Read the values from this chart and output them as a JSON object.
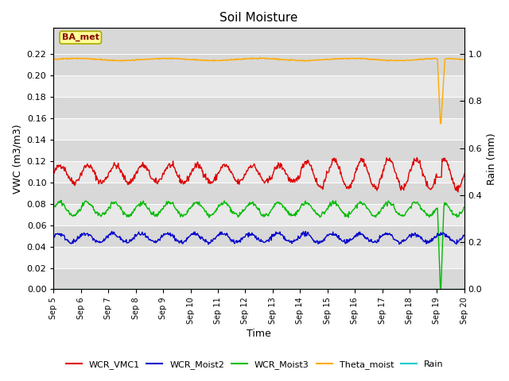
{
  "title": "Soil Moisture",
  "xlabel": "Time",
  "ylabel_left": "VWC (m3/m3)",
  "ylabel_right": "Rain (mm)",
  "annotation": "BA_met",
  "ylim_left": [
    0.0,
    0.2444
  ],
  "ylim_right": [
    0.0,
    1.111
  ],
  "yticks_left": [
    0.0,
    0.02,
    0.04,
    0.06,
    0.08,
    0.1,
    0.12,
    0.14,
    0.16,
    0.18,
    0.2,
    0.22
  ],
  "yticks_right": [
    0.0,
    0.2,
    0.4,
    0.6,
    0.8,
    1.0
  ],
  "colors": {
    "WCR_VMC1": "#dd0000",
    "WCR_Moist2": "#0000cc",
    "WCR_Moist3": "#00bb00",
    "Theta_moist": "#ffaa00",
    "Rain": "#00cccc",
    "bg_dark": "#d8d8d8",
    "bg_light": "#e8e8e8"
  },
  "legend_labels": [
    "WCR_VMC1",
    "WCR_Moist2",
    "WCR_Moist3",
    "Theta_moist",
    "Rain"
  ],
  "num_days": 15,
  "x_tick_labels": [
    "Sep 5",
    "Sep 6",
    "Sep 7",
    "Sep 8",
    "Sep 9",
    "Sep 10",
    "Sep 11",
    "Sep 12",
    "Sep 13",
    "Sep 14",
    "Sep 15",
    "Sep 16",
    "Sep 17",
    "Sep 18",
    "Sep 19",
    "Sep 20"
  ]
}
